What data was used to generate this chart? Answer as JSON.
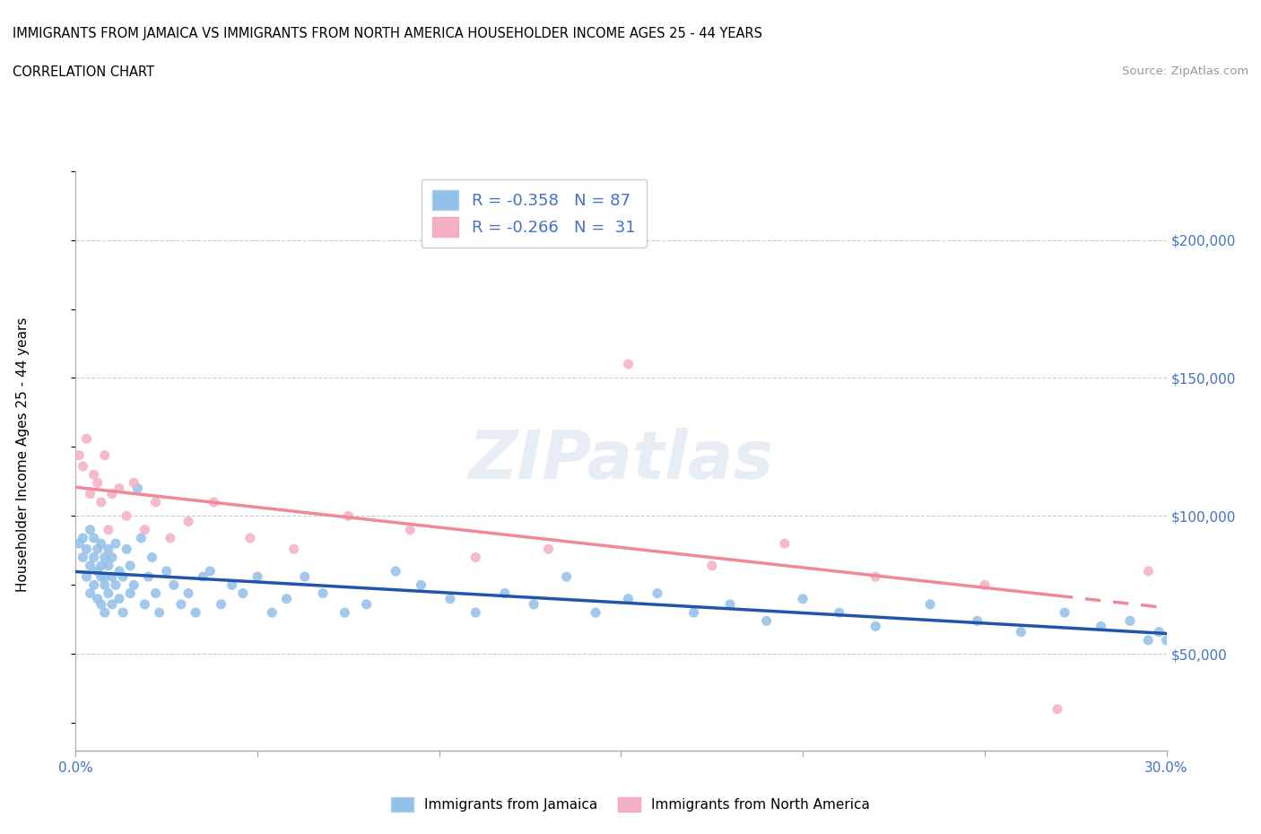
{
  "title_line1": "IMMIGRANTS FROM JAMAICA VS IMMIGRANTS FROM NORTH AMERICA HOUSEHOLDER INCOME AGES 25 - 44 YEARS",
  "title_line2": "CORRELATION CHART",
  "source_text": "Source: ZipAtlas.com",
  "ylabel": "Householder Income Ages 25 - 44 years",
  "xlim": [
    0.0,
    0.3
  ],
  "ylim": [
    15000,
    225000
  ],
  "yticks": [
    50000,
    100000,
    150000,
    200000
  ],
  "ytick_labels": [
    "$50,000",
    "$100,000",
    "$150,000",
    "$200,000"
  ],
  "xticks": [
    0.0,
    0.05,
    0.1,
    0.15,
    0.2,
    0.25,
    0.3
  ],
  "jamaica_color": "#92c0e8",
  "na_color": "#f4b0c4",
  "jamaica_line_color": "#2255aa",
  "na_line_color": "#f08898",
  "background_color": "#ffffff",
  "grid_color": "#cccccc",
  "jamaica_x": [
    0.001,
    0.002,
    0.002,
    0.003,
    0.003,
    0.004,
    0.004,
    0.004,
    0.005,
    0.005,
    0.005,
    0.006,
    0.006,
    0.006,
    0.007,
    0.007,
    0.007,
    0.007,
    0.008,
    0.008,
    0.008,
    0.008,
    0.009,
    0.009,
    0.009,
    0.01,
    0.01,
    0.01,
    0.011,
    0.011,
    0.012,
    0.012,
    0.013,
    0.013,
    0.014,
    0.015,
    0.015,
    0.016,
    0.017,
    0.018,
    0.019,
    0.02,
    0.021,
    0.022,
    0.023,
    0.025,
    0.027,
    0.029,
    0.031,
    0.033,
    0.035,
    0.037,
    0.04,
    0.043,
    0.046,
    0.05,
    0.054,
    0.058,
    0.063,
    0.068,
    0.074,
    0.08,
    0.088,
    0.095,
    0.103,
    0.11,
    0.118,
    0.126,
    0.135,
    0.143,
    0.152,
    0.16,
    0.17,
    0.18,
    0.19,
    0.2,
    0.21,
    0.22,
    0.235,
    0.248,
    0.26,
    0.272,
    0.282,
    0.29,
    0.295,
    0.298,
    0.3
  ],
  "jamaica_y": [
    90000,
    85000,
    92000,
    88000,
    78000,
    82000,
    72000,
    95000,
    85000,
    75000,
    92000,
    80000,
    70000,
    88000,
    78000,
    82000,
    68000,
    90000,
    75000,
    85000,
    65000,
    78000,
    88000,
    72000,
    82000,
    68000,
    78000,
    85000,
    75000,
    90000,
    70000,
    80000,
    65000,
    78000,
    88000,
    72000,
    82000,
    75000,
    110000,
    92000,
    68000,
    78000,
    85000,
    72000,
    65000,
    80000,
    75000,
    68000,
    72000,
    65000,
    78000,
    80000,
    68000,
    75000,
    72000,
    78000,
    65000,
    70000,
    78000,
    72000,
    65000,
    68000,
    80000,
    75000,
    70000,
    65000,
    72000,
    68000,
    78000,
    65000,
    70000,
    72000,
    65000,
    68000,
    62000,
    70000,
    65000,
    60000,
    68000,
    62000,
    58000,
    65000,
    60000,
    62000,
    55000,
    58000,
    55000
  ],
  "na_x": [
    0.001,
    0.002,
    0.003,
    0.004,
    0.005,
    0.006,
    0.007,
    0.008,
    0.009,
    0.01,
    0.012,
    0.014,
    0.016,
    0.019,
    0.022,
    0.026,
    0.031,
    0.038,
    0.048,
    0.06,
    0.075,
    0.092,
    0.11,
    0.13,
    0.152,
    0.175,
    0.195,
    0.22,
    0.25,
    0.27,
    0.295
  ],
  "na_y": [
    122000,
    118000,
    128000,
    108000,
    115000,
    112000,
    105000,
    122000,
    95000,
    108000,
    110000,
    100000,
    112000,
    95000,
    105000,
    92000,
    98000,
    105000,
    92000,
    88000,
    100000,
    95000,
    85000,
    88000,
    155000,
    82000,
    90000,
    78000,
    75000,
    30000,
    80000
  ]
}
